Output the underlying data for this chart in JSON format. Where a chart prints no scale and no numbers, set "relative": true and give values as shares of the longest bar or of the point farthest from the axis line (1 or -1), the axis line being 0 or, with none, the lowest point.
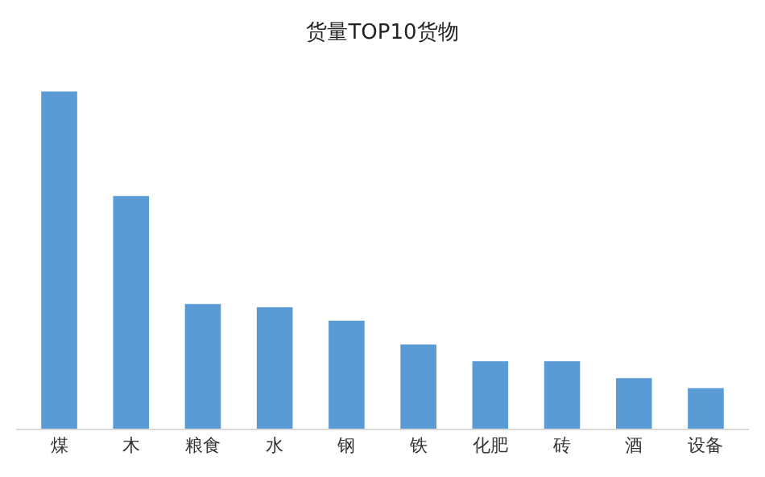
{
  "chart_data": {
    "type": "bar",
    "title": "货量TOP10货物",
    "relative": true,
    "categories": [
      "煤",
      "木",
      "粮食",
      "水",
      "钢",
      "铁",
      "化肥",
      "砖",
      "酒",
      "设备"
    ],
    "values": [
      1,
      0.69,
      0.37,
      0.36,
      0.32,
      0.25,
      0.2,
      0.2,
      0.15,
      0.12
    ],
    "color": "#5b9bd5"
  }
}
